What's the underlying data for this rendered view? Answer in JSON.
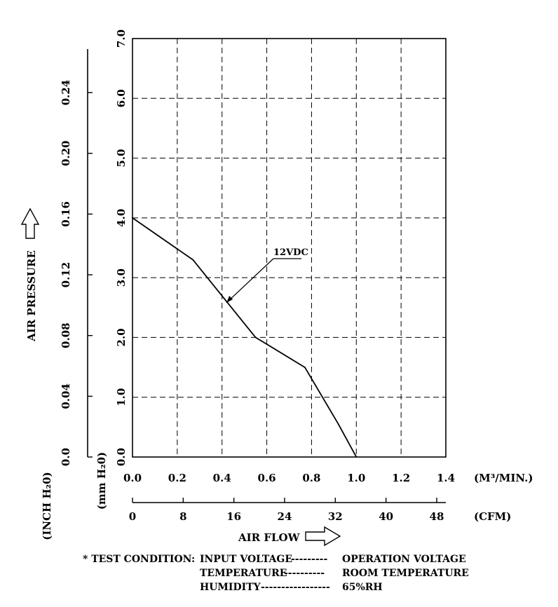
{
  "chart_data": {
    "type": "line",
    "series": [
      {
        "name": "12VDC",
        "x": [
          0.0,
          0.27,
          0.55,
          0.77,
          0.92,
          1.0
        ],
        "y": [
          4.0,
          3.3,
          2.0,
          1.5,
          0.55,
          0.0
        ]
      }
    ],
    "x_primary": {
      "unit": "(M³/MIN.)",
      "ticks": [
        "0.0",
        "0.2",
        "0.4",
        "0.6",
        "0.8",
        "1.0",
        "1.2",
        "1.4"
      ],
      "range": [
        0,
        1.4
      ]
    },
    "x_secondary": {
      "unit": "(CFM)",
      "ticks": [
        "0",
        "8",
        "16",
        "24",
        "32",
        "40",
        "48"
      ],
      "range": [
        0,
        49.44
      ]
    },
    "xlabel": "AIR FLOW",
    "y_primary": {
      "unit": "(mm H₂0)",
      "ticks": [
        "0.0",
        "1.0",
        "2.0",
        "3.0",
        "4.0",
        "5.0",
        "6.0",
        "7.0"
      ],
      "range": [
        0,
        7.0
      ]
    },
    "y_secondary": {
      "unit": "(INCH H₂0)",
      "ticks": [
        "0.0",
        "0.04",
        "0.08",
        "0.12",
        "0.16",
        "0.20",
        "0.24"
      ],
      "range": [
        0,
        0.2756
      ]
    },
    "ylabel": "AIR PRESSURE",
    "grid": true
  },
  "test_condition": {
    "title": "* TEST CONDITION:",
    "rows": [
      {
        "label": "INPUT VOLTAGE",
        "leader": "---------",
        "value": "OPERATION VOLTAGE"
      },
      {
        "label": "TEMPERATURE",
        "leader": "----------",
        "value": "ROOM TEMPERATURE"
      },
      {
        "label": "HUMIDITY",
        "leader": "-----------------",
        "value": "65%RH"
      }
    ]
  }
}
